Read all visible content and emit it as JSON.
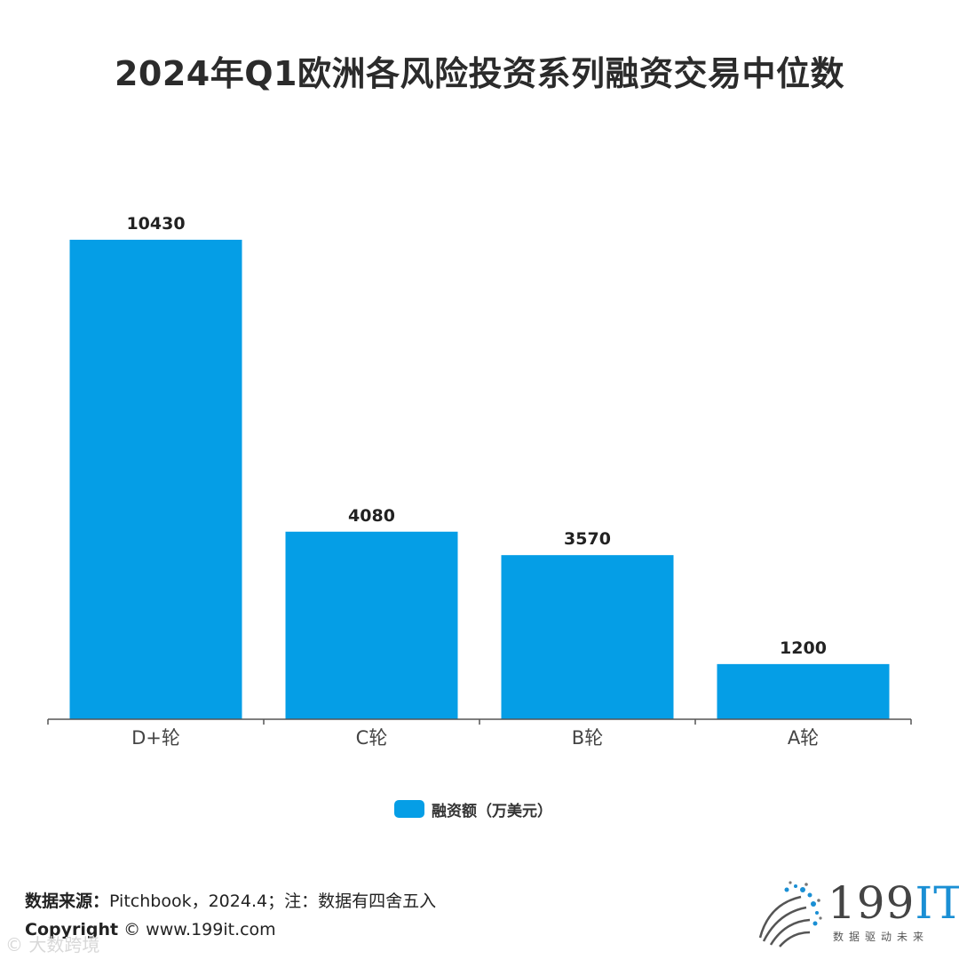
{
  "title": "2024年Q1欧洲各风险投资系列融资交易中位数",
  "chart_data": {
    "type": "bar",
    "categories": [
      "D+轮",
      "C轮",
      "B轮",
      "A轮"
    ],
    "series": [
      {
        "name": "融资额（万美元）",
        "values": [
          10430,
          4080,
          3570,
          1200
        ]
      }
    ],
    "data_labels": [
      "10430",
      "4080",
      "3570",
      "1200"
    ],
    "ylim": [
      0,
      10430
    ],
    "grid": false,
    "legend_position": "bottom",
    "bar_color": "#059ee6"
  },
  "legend": {
    "label": "融资额（万美元）"
  },
  "footer": {
    "source_label": "数据来源：",
    "source_text": "Pitchbook，2024.4；注：数据有四舍五入",
    "copyright_label": "Copyright",
    "copyright_text": "©  www.199it.com"
  },
  "watermark": "© 大数跨境",
  "logo": {
    "main": "199",
    "accent": "IT",
    "tagline": "数据驱动未来"
  }
}
